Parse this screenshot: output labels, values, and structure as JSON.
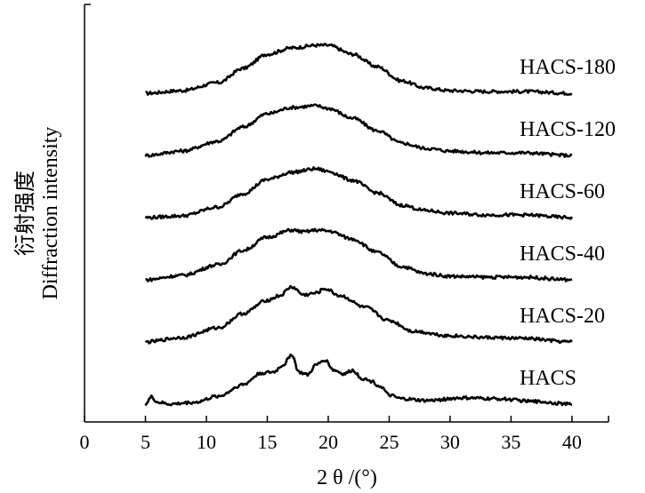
{
  "chart_data": {
    "type": "line",
    "xlabel": "2 θ /(°)",
    "ylabel_cn": "衍射强度",
    "ylabel_en": "Diffraction intensity",
    "xlim": [
      0,
      43
    ],
    "x_ticks": [
      0,
      5,
      10,
      15,
      20,
      25,
      30,
      35,
      40
    ],
    "y_ticks": [],
    "grid": false,
    "legend": "none",
    "y_scale_note": "relative intensity, curves vertically offset",
    "series": [
      {
        "name": "HACS-180",
        "baseline": 5.0,
        "x": [
          5,
          8,
          11,
          13,
          15,
          17,
          19,
          20,
          22,
          24,
          26,
          28,
          30,
          33,
          36,
          40
        ],
        "y": [
          0.0,
          0.03,
          0.12,
          0.28,
          0.44,
          0.51,
          0.54,
          0.54,
          0.44,
          0.3,
          0.14,
          0.06,
          0.03,
          0.02,
          0.02,
          0.0
        ]
      },
      {
        "name": "HACS-120",
        "baseline": 4.0,
        "x": [
          5,
          8,
          11,
          13,
          15,
          17,
          19,
          20,
          22,
          24,
          26,
          28,
          30,
          33,
          36,
          40
        ],
        "y": [
          0.0,
          0.05,
          0.16,
          0.32,
          0.47,
          0.54,
          0.56,
          0.53,
          0.42,
          0.28,
          0.14,
          0.08,
          0.05,
          0.03,
          0.03,
          0.0
        ]
      },
      {
        "name": "HACS-60",
        "baseline": 3.0,
        "x": [
          5,
          8,
          11,
          13,
          15,
          17,
          19,
          20,
          22,
          24,
          26,
          28,
          30,
          33,
          36,
          40
        ],
        "y": [
          0.0,
          0.02,
          0.12,
          0.27,
          0.43,
          0.51,
          0.55,
          0.52,
          0.42,
          0.28,
          0.14,
          0.08,
          0.05,
          0.03,
          0.03,
          0.0
        ]
      },
      {
        "name": "HACS-40",
        "baseline": 2.0,
        "x": [
          5,
          8,
          11,
          13,
          15,
          17,
          18,
          19,
          20,
          22,
          24,
          26,
          28,
          30,
          33,
          36,
          40
        ],
        "y": [
          0.0,
          0.05,
          0.17,
          0.33,
          0.48,
          0.56,
          0.54,
          0.56,
          0.55,
          0.46,
          0.31,
          0.15,
          0.07,
          0.04,
          0.03,
          0.03,
          0.0
        ]
      },
      {
        "name": "HACS-20",
        "baseline": 1.0,
        "x": [
          5,
          8,
          11,
          13,
          15,
          16,
          17,
          18,
          19,
          19.7,
          21,
          23,
          25,
          27,
          30,
          33,
          36,
          40
        ],
        "y": [
          0.0,
          0.05,
          0.16,
          0.32,
          0.47,
          0.52,
          0.62,
          0.53,
          0.55,
          0.6,
          0.52,
          0.39,
          0.24,
          0.12,
          0.07,
          0.05,
          0.04,
          0.0
        ]
      },
      {
        "name": "HACS",
        "baseline": 0.0,
        "x": [
          5,
          5.5,
          6,
          7,
          9,
          11,
          13,
          14.5,
          15.5,
          16.3,
          17.0,
          17.6,
          18.3,
          19.0,
          19.7,
          20.5,
          21.3,
          22.0,
          22.8,
          23.5,
          24.3,
          25,
          26,
          28,
          31,
          34,
          37,
          40
        ],
        "y": [
          0.0,
          0.08,
          0.02,
          0.0,
          0.02,
          0.09,
          0.22,
          0.35,
          0.36,
          0.44,
          0.56,
          0.36,
          0.33,
          0.44,
          0.5,
          0.38,
          0.34,
          0.38,
          0.29,
          0.26,
          0.2,
          0.1,
          0.06,
          0.04,
          0.07,
          0.06,
          0.03,
          0.0
        ]
      }
    ]
  }
}
